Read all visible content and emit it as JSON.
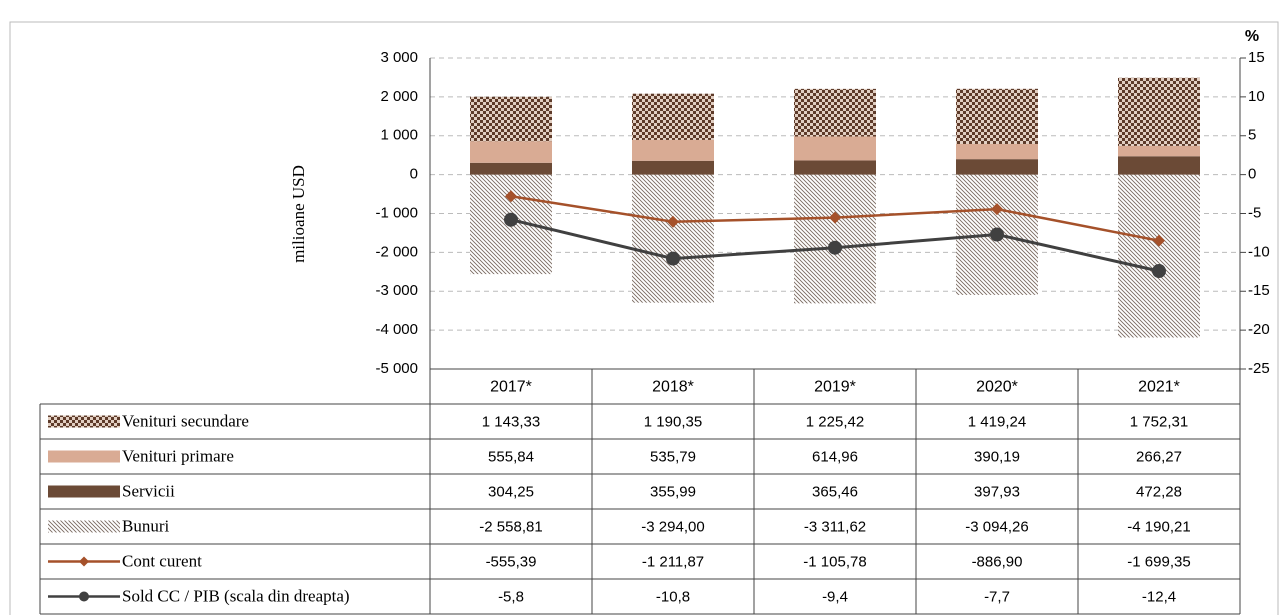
{
  "chart_data": {
    "type": "bar",
    "y_label": "milioane USD",
    "y2_label": "%",
    "categories": [
      "2017*",
      "2018*",
      "2019*",
      "2020*",
      "2021*"
    ],
    "ylim": [
      -5000,
      3000
    ],
    "yticks": [
      {
        "value": 3000,
        "label": "3 000"
      },
      {
        "value": 2000,
        "label": "2 000"
      },
      {
        "value": 1000,
        "label": "1 000"
      },
      0,
      {
        "value": -1000,
        "label": "-1 000"
      },
      {
        "value": -2000,
        "label": "-2 000"
      },
      {
        "value": -3000,
        "label": "-3 000"
      },
      {
        "value": -4000,
        "label": "-4 000"
      },
      {
        "value": -5000,
        "label": "-5 000"
      }
    ],
    "y2lim": [
      -25,
      15
    ],
    "y2ticks": [
      15,
      10,
      5,
      0,
      -5,
      -10,
      -15,
      -20,
      -25
    ],
    "grid": true,
    "series": [
      {
        "name": "Venituri secundare",
        "type": "bar",
        "pattern": "checker",
        "color": "#5e3b2a",
        "values": [
          1143.33,
          1190.35,
          1225.42,
          1419.24,
          1752.31
        ],
        "value_labels": [
          "1 143,33",
          "1 190,35",
          "1 225,42",
          "1 419,24",
          "1 752,31"
        ]
      },
      {
        "name": "Venituri primare",
        "type": "bar",
        "color": "#d9ab94",
        "values": [
          555.84,
          535.79,
          614.96,
          390.19,
          266.27
        ],
        "value_labels": [
          "555,84",
          "535,79",
          "614,96",
          "390,19",
          "266,27"
        ]
      },
      {
        "name": "Servicii",
        "type": "bar",
        "color": "#6b4a36",
        "values": [
          304.25,
          355.99,
          365.46,
          397.93,
          472.28
        ],
        "value_labels": [
          "304,25",
          "355,99",
          "365,46",
          "397,93",
          "472,28"
        ]
      },
      {
        "name": "Bunuri",
        "type": "bar",
        "pattern": "diagonal",
        "color": "#7a6a60",
        "values": [
          -2558.81,
          -3294.0,
          -3311.62,
          -3094.26,
          -4190.21
        ],
        "value_labels": [
          "-2 558,81",
          "-3 294,00",
          "-3 311,62",
          "-3 094,26",
          "-4 190,21"
        ]
      },
      {
        "name": "Cont curent",
        "type": "line",
        "marker": "diamond",
        "color": "#a5512a",
        "values": [
          -555.39,
          -1211.87,
          -1105.78,
          -886.9,
          -1699.35
        ],
        "value_labels": [
          "-555,39",
          "-1 211,87",
          "-1 105,78",
          "-886,90",
          "-1 699,35"
        ]
      },
      {
        "name": "Sold CC / PIB (scala din dreapta)",
        "type": "line",
        "marker": "circle",
        "axis": "y2",
        "color": "#404040",
        "values": [
          -5.8,
          -10.8,
          -9.4,
          -7.7,
          -12.4
        ],
        "value_labels": [
          "-5,8",
          "-10,8",
          "-9,4",
          "-7,7",
          "-12,4"
        ]
      }
    ]
  }
}
